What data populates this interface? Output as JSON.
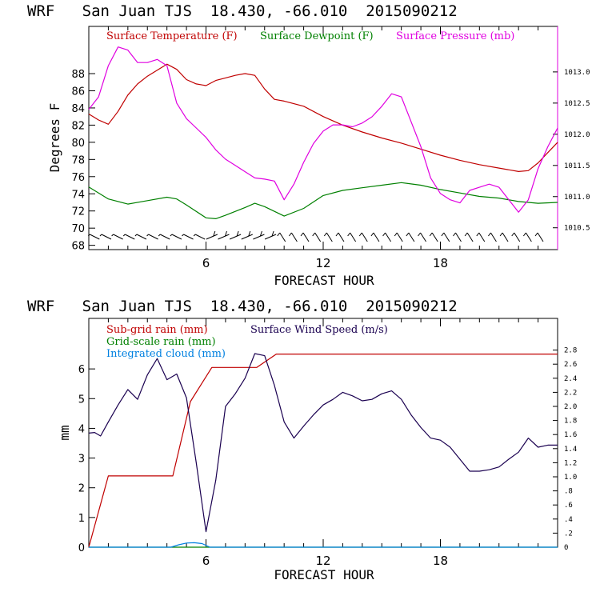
{
  "chart_data": [
    {
      "type": "line",
      "title": "WRF   San Juan TJS  18.430, -66.010  2015090212",
      "xlabel": "FORECAST HOUR",
      "ylabel": "Degrees F",
      "xlim": [
        0,
        24
      ],
      "ylim": [
        67.5,
        93.5
      ],
      "y2lim": [
        1010.15,
        1013.73
      ],
      "x_ticks": [
        6,
        12,
        18
      ],
      "y_ticks": [
        68,
        70,
        72,
        74,
        76,
        78,
        80,
        82,
        84,
        86,
        88
      ],
      "y2_ticks": [
        "1010.5",
        "1011.0",
        "1011.5",
        "1012.0",
        "1012.5",
        "1013.0"
      ],
      "colors": {
        "temperature": "#c00000",
        "dewpoint": "#008000",
        "pressure": "#e000e0",
        "wind_barbs": "#000000"
      },
      "series": [
        {
          "name": "Surface Temperature (F)",
          "axis": "left",
          "x": [
            0,
            0.5,
            1,
            1.5,
            2,
            2.5,
            3,
            3.5,
            4,
            4.5,
            5,
            5.5,
            6,
            6.5,
            7,
            7.5,
            8,
            8.5,
            9,
            9.5,
            10,
            11,
            12,
            13,
            14,
            15,
            16,
            17,
            18,
            19,
            20,
            21,
            22,
            22.5,
            23,
            23.5,
            24
          ],
          "values": [
            83.3,
            82.6,
            82.1,
            83.6,
            85.5,
            86.8,
            87.7,
            88.4,
            89.1,
            88.5,
            87.3,
            86.8,
            86.6,
            87.2,
            87.5,
            87.8,
            88.0,
            87.8,
            86.2,
            85.0,
            84.8,
            84.2,
            83.0,
            82.0,
            81.2,
            80.5,
            79.9,
            79.2,
            78.5,
            77.9,
            77.4,
            77.0,
            76.6,
            76.7,
            77.6,
            78.8,
            80.0
          ]
        },
        {
          "name": "Surface Dewpoint (F)",
          "axis": "left",
          "x": [
            0,
            1,
            2,
            3,
            4,
            4.5,
            5,
            6,
            6.5,
            7,
            8,
            8.5,
            9,
            10,
            11,
            12,
            13,
            14,
            15,
            16,
            17,
            18,
            19,
            20,
            21,
            22,
            23,
            24
          ],
          "values": [
            74.8,
            73.4,
            72.8,
            73.2,
            73.6,
            73.4,
            72.7,
            71.2,
            71.1,
            71.5,
            72.4,
            72.9,
            72.5,
            71.4,
            72.3,
            73.8,
            74.4,
            74.7,
            75.0,
            75.3,
            75.0,
            74.5,
            74.1,
            73.7,
            73.5,
            73.1,
            72.9,
            73.0
          ]
        },
        {
          "name": "Surface Pressure (mb)",
          "axis": "right",
          "x": [
            0,
            0.5,
            1,
            1.5,
            2,
            2.5,
            3,
            3.5,
            4,
            4.5,
            5,
            5.5,
            6,
            6.5,
            7,
            7.5,
            8,
            8.5,
            9,
            9.5,
            10,
            10.5,
            11,
            11.5,
            12,
            12.5,
            13,
            13.5,
            14,
            14.5,
            15,
            15.5,
            16,
            16.5,
            17,
            17.5,
            18,
            18.5,
            19,
            19.5,
            20,
            20.5,
            21,
            21.5,
            22,
            22.5,
            23,
            23.5,
            24
          ],
          "values": [
            1012.4,
            1012.6,
            1013.1,
            1013.4,
            1013.35,
            1013.15,
            1013.15,
            1013.2,
            1013.1,
            1012.5,
            1012.25,
            1012.1,
            1011.95,
            1011.75,
            1011.6,
            1011.5,
            1011.4,
            1011.3,
            1011.28,
            1011.25,
            1010.95,
            1011.2,
            1011.55,
            1011.85,
            1012.05,
            1012.15,
            1012.15,
            1012.12,
            1012.18,
            1012.28,
            1012.45,
            1012.65,
            1012.6,
            1012.2,
            1011.8,
            1011.3,
            1011.05,
            1010.95,
            1010.9,
            1011.1,
            1011.15,
            1011.2,
            1011.15,
            1010.95,
            1010.75,
            1010.95,
            1011.45,
            1011.8,
            1012.1
          ]
        }
      ],
      "wind_barbs": {
        "x_start": 0.3,
        "x_step": 0.6,
        "count": 39
      },
      "legend": "top"
    },
    {
      "type": "line",
      "title": "WRF   San Juan TJS  18.430, -66.010  2015090212",
      "xlabel": "FORECAST HOUR",
      "ylabel": "mm",
      "xlim": [
        0,
        24
      ],
      "ylim": [
        0,
        7.7
      ],
      "y2lim": [
        0,
        3.25
      ],
      "x_ticks": [
        6,
        12,
        18
      ],
      "y_ticks": [
        0,
        1,
        2,
        3,
        4,
        5,
        6
      ],
      "y2_ticks": [
        "0",
        ".2",
        ".4",
        ".6",
        ".8",
        "1.0",
        "1.2",
        "1.4",
        "1.6",
        "1.8",
        "2.0",
        "2.2",
        "2.4",
        "2.6",
        "2.8"
      ],
      "colors": {
        "subgrid": "#c00000",
        "gridscale": "#008000",
        "cloud": "#0080e0",
        "wind_speed": "#1a0050"
      },
      "series": [
        {
          "name": "Sub-grid rain (mm)",
          "axis": "left",
          "x": [
            0,
            1,
            4.3,
            5.2,
            6.3,
            8.6,
            9.6,
            24
          ],
          "values": [
            0,
            2.4,
            2.4,
            4.9,
            6.05,
            6.05,
            6.5,
            6.5
          ]
        },
        {
          "name": "Grid-scale rain (mm)",
          "axis": "left",
          "x": [
            0,
            24
          ],
          "values": [
            0,
            0
          ]
        },
        {
          "name": "Integrated cloud (mm)",
          "axis": "left",
          "x": [
            0,
            4.2,
            4.6,
            5.0,
            5.4,
            5.8,
            6.2,
            24
          ],
          "values": [
            0,
            0,
            0.08,
            0.14,
            0.15,
            0.12,
            0,
            0
          ]
        },
        {
          "name": "Surface Wind Speed (m/s)",
          "axis": "right",
          "x": [
            0,
            0.3,
            0.6,
            1,
            1.5,
            2,
            2.5,
            3,
            3.5,
            4,
            4.5,
            5,
            5.5,
            6,
            6.5,
            7,
            7.5,
            8,
            8.5,
            9,
            9.5,
            10,
            10.5,
            11,
            11.5,
            12,
            12.5,
            13,
            13.5,
            14,
            14.5,
            15,
            15.5,
            16,
            16.5,
            17,
            17.5,
            18,
            18.5,
            19,
            19.5,
            20,
            20.5,
            21,
            21.5,
            22,
            22.5,
            23,
            23.5,
            24
          ],
          "values": [
            1.62,
            1.63,
            1.58,
            1.78,
            2.02,
            2.24,
            2.1,
            2.45,
            2.68,
            2.38,
            2.46,
            2.12,
            1.2,
            0.22,
            0.95,
            2.0,
            2.18,
            2.4,
            2.75,
            2.72,
            2.3,
            1.78,
            1.55,
            1.72,
            1.88,
            2.02,
            2.1,
            2.2,
            2.15,
            2.08,
            2.1,
            2.18,
            2.22,
            2.1,
            1.88,
            1.7,
            1.55,
            1.52,
            1.42,
            1.25,
            1.08,
            1.08,
            1.1,
            1.14,
            1.25,
            1.35,
            1.55,
            1.42,
            1.45,
            1.45
          ]
        }
      ],
      "legend": "top-left"
    }
  ]
}
